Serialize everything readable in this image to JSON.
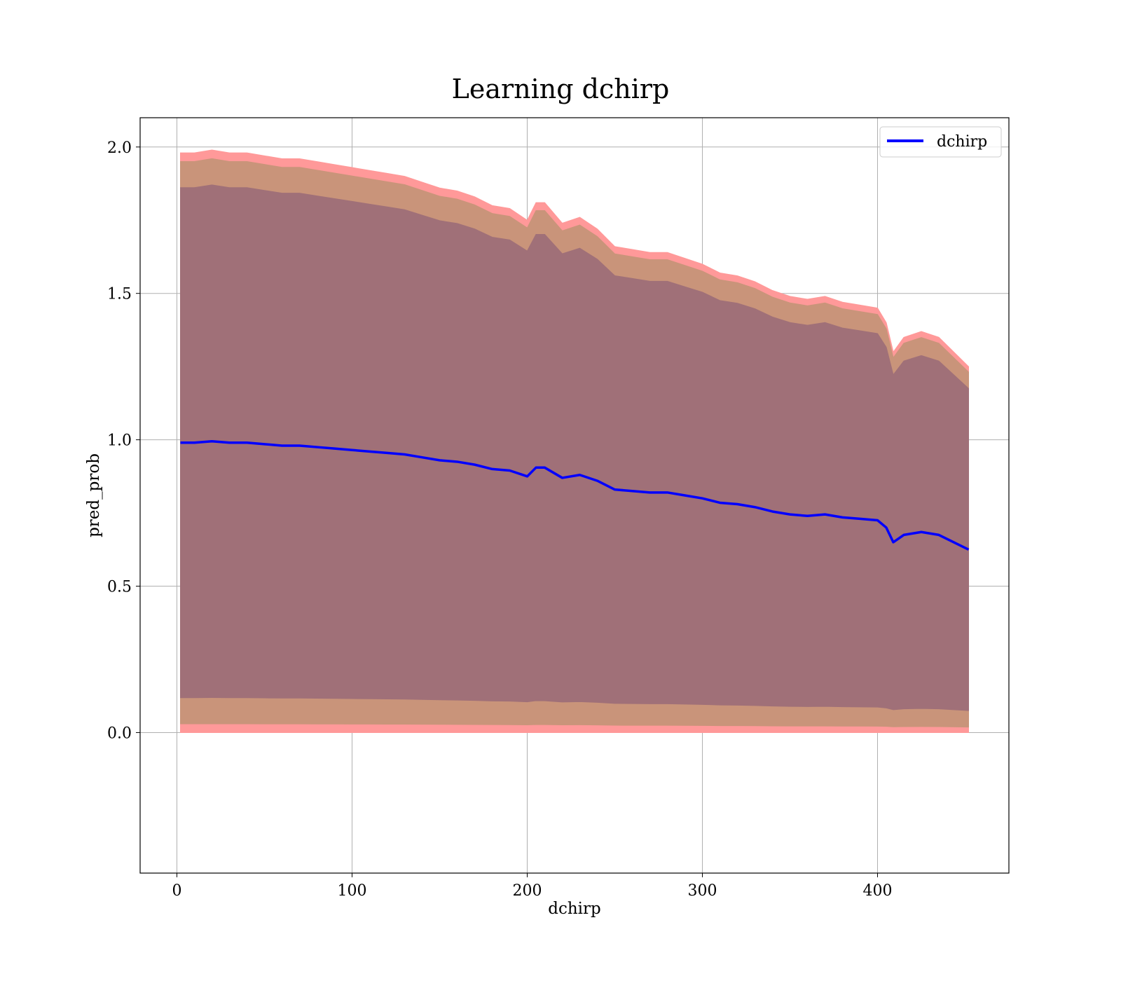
{
  "chart_data": {
    "type": "line",
    "title": "Learning dchirp",
    "xlabel": "dchirp",
    "ylabel": "pred_prob",
    "xlim": [
      -21,
      475
    ],
    "ylim": [
      -0.48,
      2.1
    ],
    "grid": true,
    "legend_position": "top-right",
    "x_ticks": [
      0,
      100,
      200,
      300,
      400
    ],
    "x_tick_labels": [
      "0",
      "100",
      "200",
      "300",
      "400"
    ],
    "y_ticks": [
      0.0,
      0.5,
      1.0,
      1.5,
      2.0
    ],
    "y_tick_labels": [
      "0.0",
      "0.5",
      "1.0",
      "1.5",
      "2.0"
    ],
    "colors": {
      "line": "#0000ff",
      "band_outer": "#ff9999",
      "band_middle": "#c9947a",
      "band_inner": "#a07078",
      "grid": "#b0b0b0"
    },
    "series": [
      {
        "name": "dchirp",
        "x": [
          2,
          10,
          20,
          30,
          40,
          50,
          60,
          70,
          80,
          90,
          100,
          110,
          120,
          130,
          140,
          150,
          160,
          170,
          180,
          190,
          200,
          205,
          210,
          220,
          230,
          240,
          250,
          260,
          270,
          280,
          290,
          300,
          310,
          320,
          330,
          340,
          350,
          360,
          370,
          380,
          390,
          400,
          405,
          409,
          415,
          425,
          435,
          452
        ],
        "y": [
          0.99,
          0.99,
          0.995,
          0.99,
          0.99,
          0.985,
          0.98,
          0.98,
          0.975,
          0.97,
          0.965,
          0.96,
          0.955,
          0.95,
          0.94,
          0.93,
          0.925,
          0.915,
          0.9,
          0.895,
          0.875,
          0.905,
          0.905,
          0.87,
          0.88,
          0.86,
          0.83,
          0.825,
          0.82,
          0.82,
          0.81,
          0.8,
          0.785,
          0.78,
          0.77,
          0.755,
          0.745,
          0.74,
          0.745,
          0.735,
          0.73,
          0.725,
          0.7,
          0.65,
          0.675,
          0.685,
          0.675,
          0.625
        ]
      }
    ]
  }
}
